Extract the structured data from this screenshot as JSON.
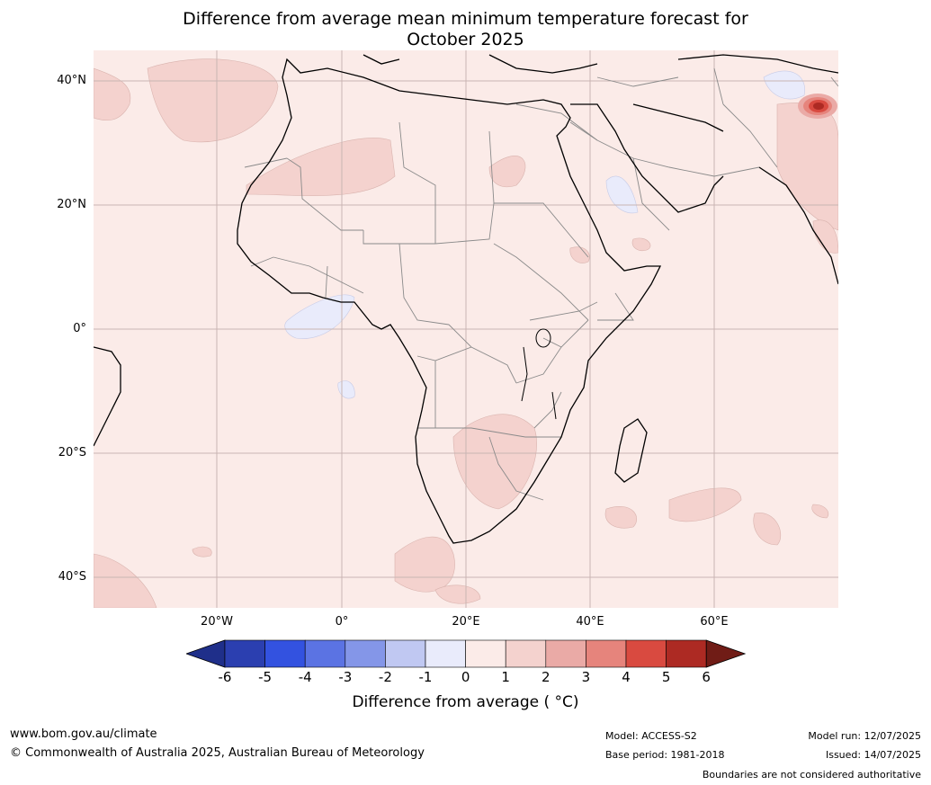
{
  "title_line1": "Difference from average mean minimum temperature forecast for",
  "title_line2": "October 2025",
  "map": {
    "lat_labels": [
      "40°N",
      "20°N",
      "0°",
      "20°S",
      "40°S"
    ],
    "lon_labels": [
      "20°W",
      "0°",
      "20°E",
      "40°E",
      "60°E"
    ]
  },
  "colorbar": {
    "ticks": [
      "-6",
      "-5",
      "-4",
      "-3",
      "-2",
      "-1",
      "0",
      "1",
      "2",
      "3",
      "4",
      "5",
      "6"
    ],
    "colors": [
      "#1f2f8a",
      "#2b3fb0",
      "#3352e0",
      "#5b73e3",
      "#8496e8",
      "#c0c8f2",
      "#e9ebfb",
      "#fbebe8",
      "#f4d2ce",
      "#eaaaa6",
      "#e6847c",
      "#d94a40",
      "#ad2a23",
      "#701c16"
    ],
    "label": "Difference from average ( °C)"
  },
  "footer": {
    "website": "www.bom.gov.au/climate",
    "copyright": "© Commonwealth of Australia 2025, Australian Bureau of Meteorology",
    "model": "Model: ACCESS-S2",
    "base_period": "Base period: 1981-2018",
    "model_run": "Model run: 12/07/2025",
    "issued": "Issued: 14/07/2025",
    "disclaimer": "Boundaries are not considered authoritative"
  }
}
